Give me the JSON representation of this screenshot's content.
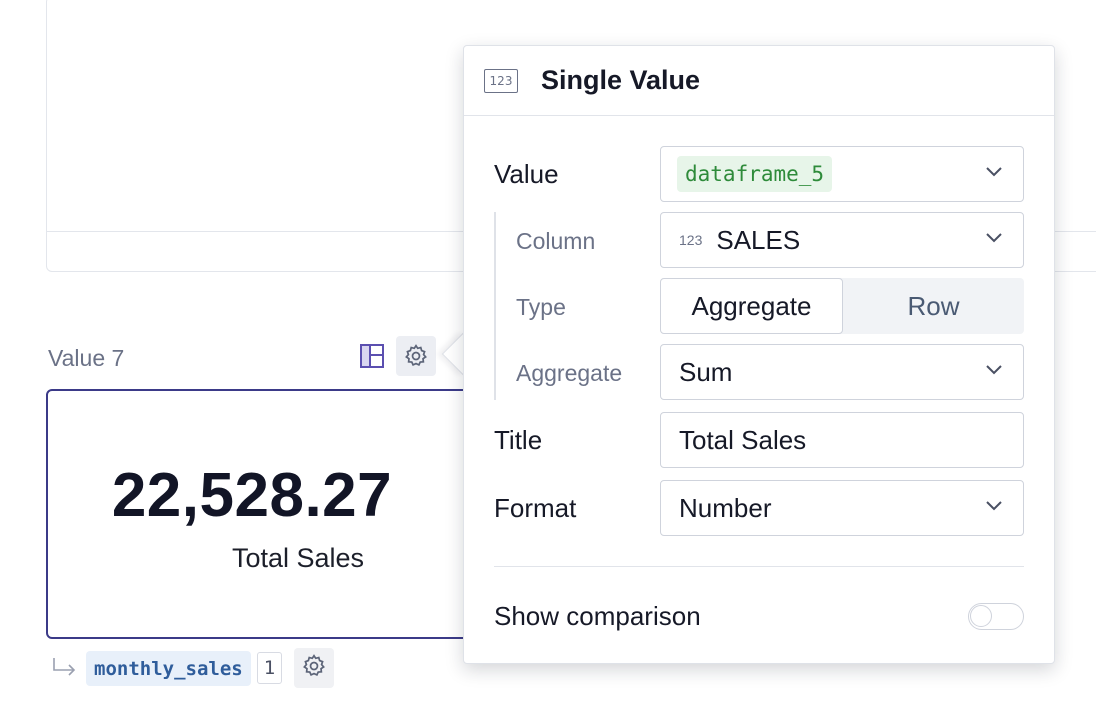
{
  "cell": {
    "label": "Value 7",
    "value": "22,528.27",
    "title": "Total Sales",
    "toolbar": {
      "layout_icon": "layout-icon",
      "settings_icon": "gear-icon"
    }
  },
  "source": {
    "arrow_icon": "return-arrow-icon",
    "dataframe": "monthly_sales",
    "count": "1",
    "settings_icon": "gear-icon"
  },
  "popover": {
    "header_icon_text": "123",
    "header_title": "Single Value",
    "value_label": "Value",
    "value_selected": "dataframe_5",
    "column_label": "Column",
    "column_type": "123",
    "column_selected": "SALES",
    "type_label": "Type",
    "type_options": [
      "Aggregate",
      "Row"
    ],
    "type_selected": "Aggregate",
    "aggregate_label": "Aggregate",
    "aggregate_selected": "Sum",
    "title_label": "Title",
    "title_value": "Total Sales",
    "format_label": "Format",
    "format_selected": "Number",
    "comparison_label": "Show comparison",
    "comparison_enabled": false
  },
  "colors": {
    "card_border": "#3b3a88",
    "dataframe_chip_text": "#2e8b3a",
    "source_chip_text": "#2f5d9b"
  }
}
